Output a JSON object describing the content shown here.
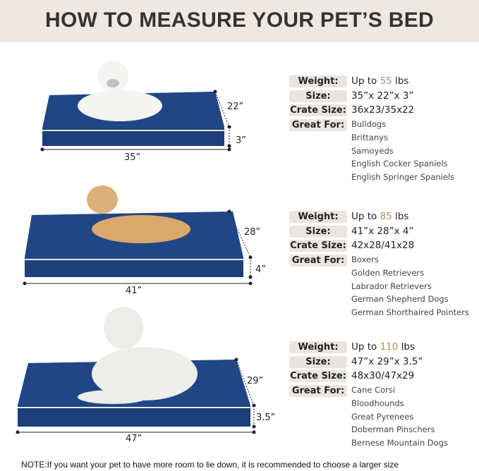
{
  "title": "HOW TO MEASURE YOUR PET’S BED",
  "colors": {
    "header_bg": "#efe8e2",
    "bed_blue": "#1d3f7a",
    "accent_number": "#b08d5d",
    "label_bg": "#ece5df"
  },
  "labels": {
    "weight": "Weight:",
    "size": "Size:",
    "crate": "Crate Size:",
    "great_for": "Great For:"
  },
  "beds": [
    {
      "width_dim": "35”",
      "depth_dim": "22”",
      "height_dim": "3”",
      "weight_prefix": "Up to ",
      "weight_num": "55",
      "weight_unit": " lbs",
      "size": "35”x 22”x 3”",
      "crate": "36x23/35x22",
      "breeds": [
        "Bulldogs",
        "Brittanys",
        "Samoyeds",
        "English Cocker Spaniels",
        "English Springer Spaniels"
      ]
    },
    {
      "width_dim": "41”",
      "depth_dim": "28”",
      "height_dim": "4”",
      "weight_prefix": "Up to ",
      "weight_num": "85",
      "weight_unit": " lbs",
      "size": "41”x 28”x 4”",
      "crate": "42x28/41x28",
      "breeds": [
        "Boxers",
        "Golden Retrievers",
        "Labrador Retrievers",
        "German Shepherd Dogs",
        "German Shorthaired Pointers"
      ]
    },
    {
      "width_dim": "47”",
      "depth_dim": "29”",
      "height_dim": "3.5”",
      "weight_prefix": "Up to ",
      "weight_num": "110",
      "weight_unit": " lbs",
      "size": "47”x 29”x 3.5”",
      "crate": "48x30/47x29",
      "breeds": [
        "Cane Corsi",
        "Bloodhounds",
        "Great Pyrenees",
        "Doberman Pinschers",
        "Bernese Mountain Dogs"
      ]
    }
  ],
  "note": "NOTE:If you want your pet to have more room to lie down, it is recommended to choose a larger size"
}
